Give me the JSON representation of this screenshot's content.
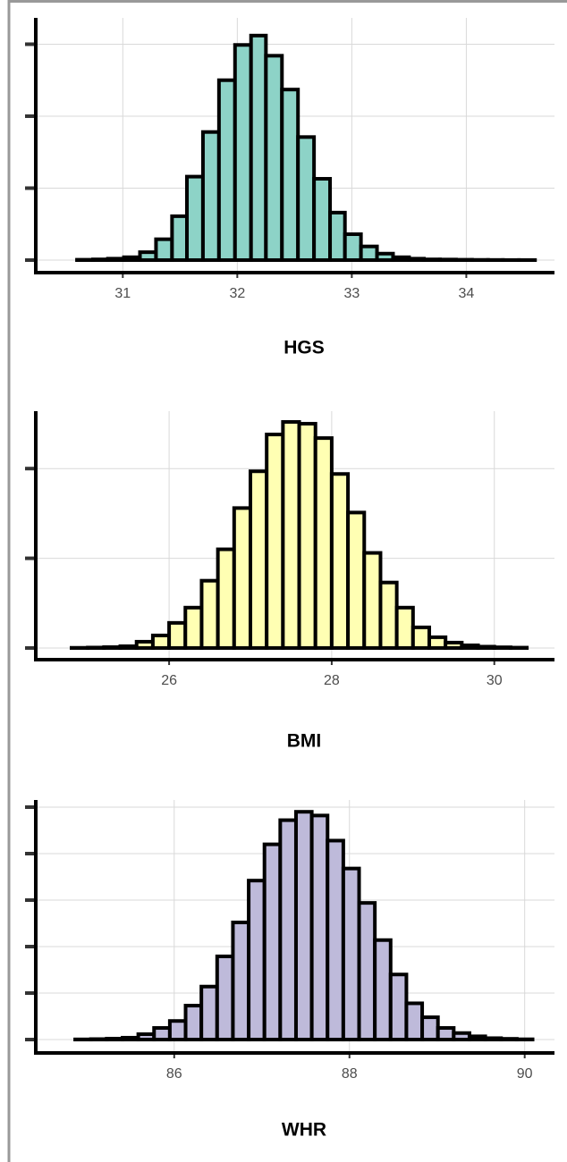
{
  "chart_data": [
    {
      "type": "histogram",
      "xlabel": "HGS",
      "color": "#8dd3c7",
      "grid": true,
      "bins": [
        30.46,
        30.6,
        30.74,
        30.87,
        31.01,
        31.15,
        31.29,
        31.43,
        31.56,
        31.7,
        31.84,
        31.98,
        32.12,
        32.25,
        32.39,
        32.53,
        32.67,
        32.81,
        32.94,
        33.08,
        33.22,
        33.36,
        33.5,
        33.63,
        33.77,
        33.91,
        34.05,
        34.19,
        34.32,
        34.46,
        34.6
      ],
      "values": [
        0,
        5,
        10,
        20,
        40,
        110,
        290,
        610,
        1160,
        1780,
        2500,
        2990,
        3120,
        2840,
        2370,
        1710,
        1130,
        660,
        360,
        190,
        90,
        40,
        20,
        10,
        8,
        5,
        3,
        2,
        1,
        1
      ],
      "xlim": [
        30.24,
        34.77
      ],
      "xticks": [
        31,
        32,
        33,
        34
      ],
      "ylim": [
        -174,
        3366
      ],
      "yticks": [
        0,
        1000,
        2000,
        3000
      ]
    },
    {
      "type": "histogram",
      "xlabel": "BMI",
      "color": "#ffffb3",
      "grid": true,
      "bins": [
        24.6,
        24.8,
        25.0,
        25.2,
        25.4,
        25.6,
        25.8,
        26.0,
        26.2,
        26.4,
        26.6,
        26.8,
        27.0,
        27.2,
        27.4,
        27.6,
        27.8,
        28.0,
        28.2,
        28.4,
        28.6,
        28.8,
        29.0,
        29.2,
        29.4,
        29.6,
        29.8,
        30.0,
        30.2,
        30.4
      ],
      "values": [
        0,
        2,
        5,
        10,
        20,
        70,
        140,
        280,
        450,
        750,
        1100,
        1560,
        1970,
        2380,
        2520,
        2500,
        2340,
        1940,
        1510,
        1060,
        730,
        450,
        230,
        120,
        60,
        30,
        15,
        8,
        4
      ],
      "xlim": [
        24.36,
        30.74
      ],
      "xticks": [
        26,
        28,
        30
      ],
      "ylim": [
        -130,
        2640
      ],
      "yticks": [
        0,
        1000,
        2000
      ]
    },
    {
      "type": "histogram",
      "xlabel": "WHR",
      "color": "#bebada",
      "grid": true,
      "bins": [
        84.69,
        84.87,
        85.05,
        85.23,
        85.41,
        85.59,
        85.77,
        85.95,
        86.13,
        86.31,
        86.49,
        86.67,
        86.85,
        87.03,
        87.21,
        87.39,
        87.57,
        87.75,
        87.93,
        88.11,
        88.29,
        88.47,
        88.65,
        88.83,
        89.01,
        89.19,
        89.37,
        89.55,
        89.73,
        89.91,
        90.09
      ],
      "values": [
        0,
        2,
        5,
        10,
        20,
        58,
        125,
        200,
        365,
        570,
        895,
        1260,
        1710,
        2100,
        2360,
        2450,
        2410,
        2140,
        1840,
        1470,
        1070,
        700,
        390,
        240,
        125,
        70,
        35,
        15,
        8,
        3
      ],
      "xlim": [
        84.42,
        90.34
      ],
      "xticks": [
        86,
        88,
        90
      ],
      "ylim": [
        -144,
        2577
      ],
      "yticks": [
        0,
        500,
        1000,
        1500,
        2000,
        2500
      ]
    }
  ]
}
